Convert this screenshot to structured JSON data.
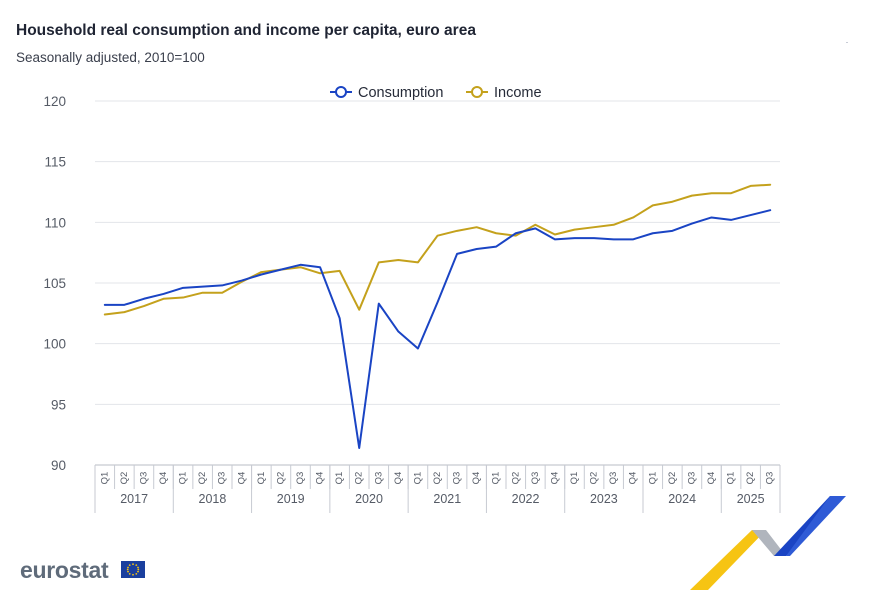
{
  "header": {
    "title": "Household real consumption and income per capita, euro area",
    "subtitle": "Seasonally adjusted, 2010=100"
  },
  "logo": {
    "text": "eurostat",
    "flag_icon": "eu-flag-icon",
    "brand_mark": "eurostat-swoosh-icon"
  },
  "colors": {
    "consumption": "#1a44c4",
    "income": "#c4a11c",
    "grid": "#e3e5ea",
    "axis_text": "#555b66",
    "swoosh_yellow": "#f6c413",
    "swoosh_blue": "#1a44c4",
    "swoosh_grey": "#b0b5bd"
  },
  "chart_data": {
    "type": "line",
    "title": "Household real consumption and income per capita, euro area",
    "subtitle": "Seasonally adjusted, 2010=100",
    "xlabel": "",
    "ylabel": "",
    "ylim": [
      90,
      120
    ],
    "yticks": [
      90,
      95,
      100,
      105,
      110,
      115,
      120
    ],
    "grid": true,
    "legend_position": "top-center",
    "years": [
      "2017",
      "2018",
      "2019",
      "2020",
      "2021",
      "2022",
      "2023",
      "2024",
      "2025"
    ],
    "quarters_per_year": [
      4,
      4,
      4,
      4,
      4,
      4,
      4,
      4,
      3
    ],
    "x": [
      "Q1",
      "Q2",
      "Q3",
      "Q4",
      "Q1",
      "Q2",
      "Q3",
      "Q4",
      "Q1",
      "Q2",
      "Q3",
      "Q4",
      "Q1",
      "Q2",
      "Q3",
      "Q4",
      "Q1",
      "Q2",
      "Q3",
      "Q4",
      "Q1",
      "Q2",
      "Q3",
      "Q4",
      "Q1",
      "Q2",
      "Q3",
      "Q4",
      "Q1",
      "Q2",
      "Q3",
      "Q4",
      "Q1",
      "Q2",
      "Q3"
    ],
    "series": [
      {
        "name": "Consumption",
        "color": "#1a44c4",
        "values": [
          103.2,
          103.2,
          103.7,
          104.1,
          104.6,
          104.7,
          104.8,
          105.2,
          105.7,
          106.1,
          106.5,
          106.3,
          102.1,
          91.4,
          103.3,
          101.0,
          99.6,
          103.4,
          107.4,
          107.8,
          108.0,
          109.1,
          109.5,
          108.6,
          108.7,
          108.7,
          108.6,
          108.6,
          109.1,
          109.3,
          109.9,
          110.4,
          110.2,
          110.6,
          111.0
        ]
      },
      {
        "name": "Income",
        "color": "#c4a11c",
        "values": [
          102.4,
          102.6,
          103.1,
          103.7,
          103.8,
          104.2,
          104.2,
          105.1,
          105.9,
          106.1,
          106.3,
          105.8,
          106.0,
          102.8,
          106.7,
          106.9,
          106.7,
          108.9,
          109.3,
          109.6,
          109.1,
          108.9,
          109.8,
          109.0,
          109.4,
          109.6,
          109.8,
          110.4,
          111.4,
          111.7,
          112.2,
          112.4,
          112.4,
          113.0,
          113.1
        ]
      }
    ]
  }
}
